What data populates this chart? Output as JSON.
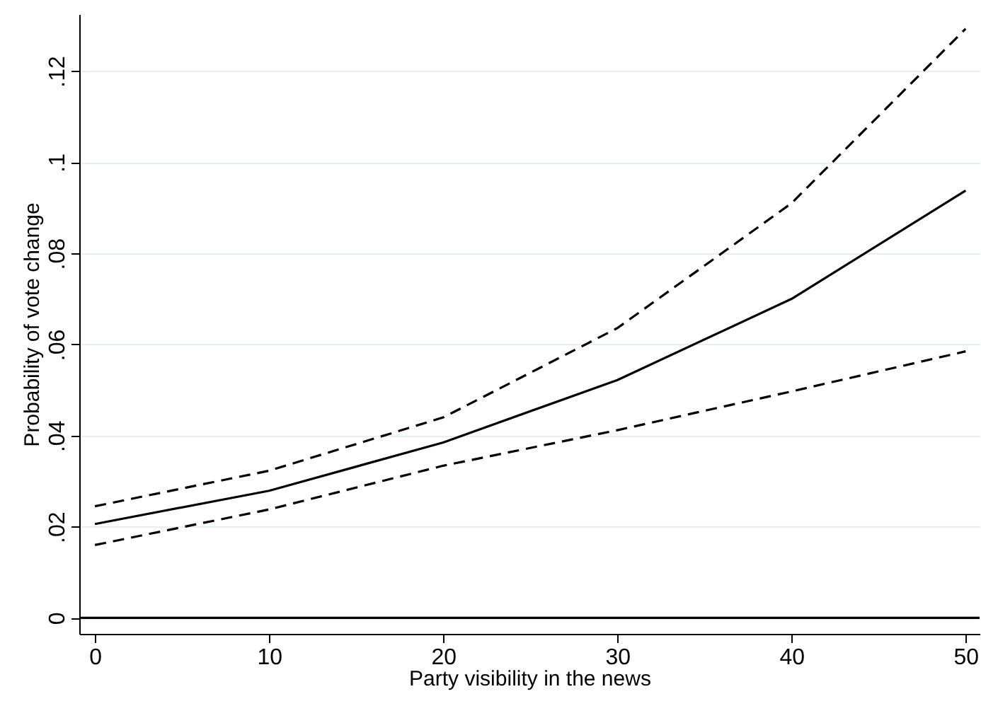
{
  "chart_data": {
    "type": "line",
    "xlabel": "Party visibility in the news",
    "ylabel": "Probability of vote change",
    "x": [
      0,
      10,
      20,
      30,
      40,
      50
    ],
    "series": [
      {
        "color": "#000000",
        "line_style": "dashed",
        "values": [
          0.0245,
          0.0323,
          0.044,
          0.0636,
          0.091,
          0.1293
        ]
      },
      {
        "color": "#000000",
        "line_style": "solid",
        "values": [
          0.0206,
          0.0279,
          0.0385,
          0.0522,
          0.07,
          0.0938
        ]
      },
      {
        "color": "#000000",
        "line_style": "dashed",
        "values": [
          0.016,
          0.0238,
          0.0334,
          0.0412,
          0.0497,
          0.0585
        ]
      }
    ],
    "xlim": [
      -0.9,
      50.8
    ],
    "xticks": [
      0,
      10,
      20,
      30,
      40,
      50
    ],
    "ylim": [
      -0.0035,
      0.1325
    ],
    "yticks": [
      0,
      {
        "value": 0.02,
        "label": ".02"
      },
      {
        "value": 0.04,
        "label": ".04"
      },
      {
        "value": 0.06,
        "label": ".06"
      },
      {
        "value": 0.08,
        "label": ".08"
      },
      {
        "value": 0.1,
        "label": ".1"
      },
      {
        "value": 0.12,
        "label": ".12"
      }
    ],
    "grid": "y",
    "marker": "none",
    "ref_lines": [
      {
        "axis": "y",
        "value": 0,
        "color": "#000000",
        "line_style": "solid"
      }
    ]
  }
}
